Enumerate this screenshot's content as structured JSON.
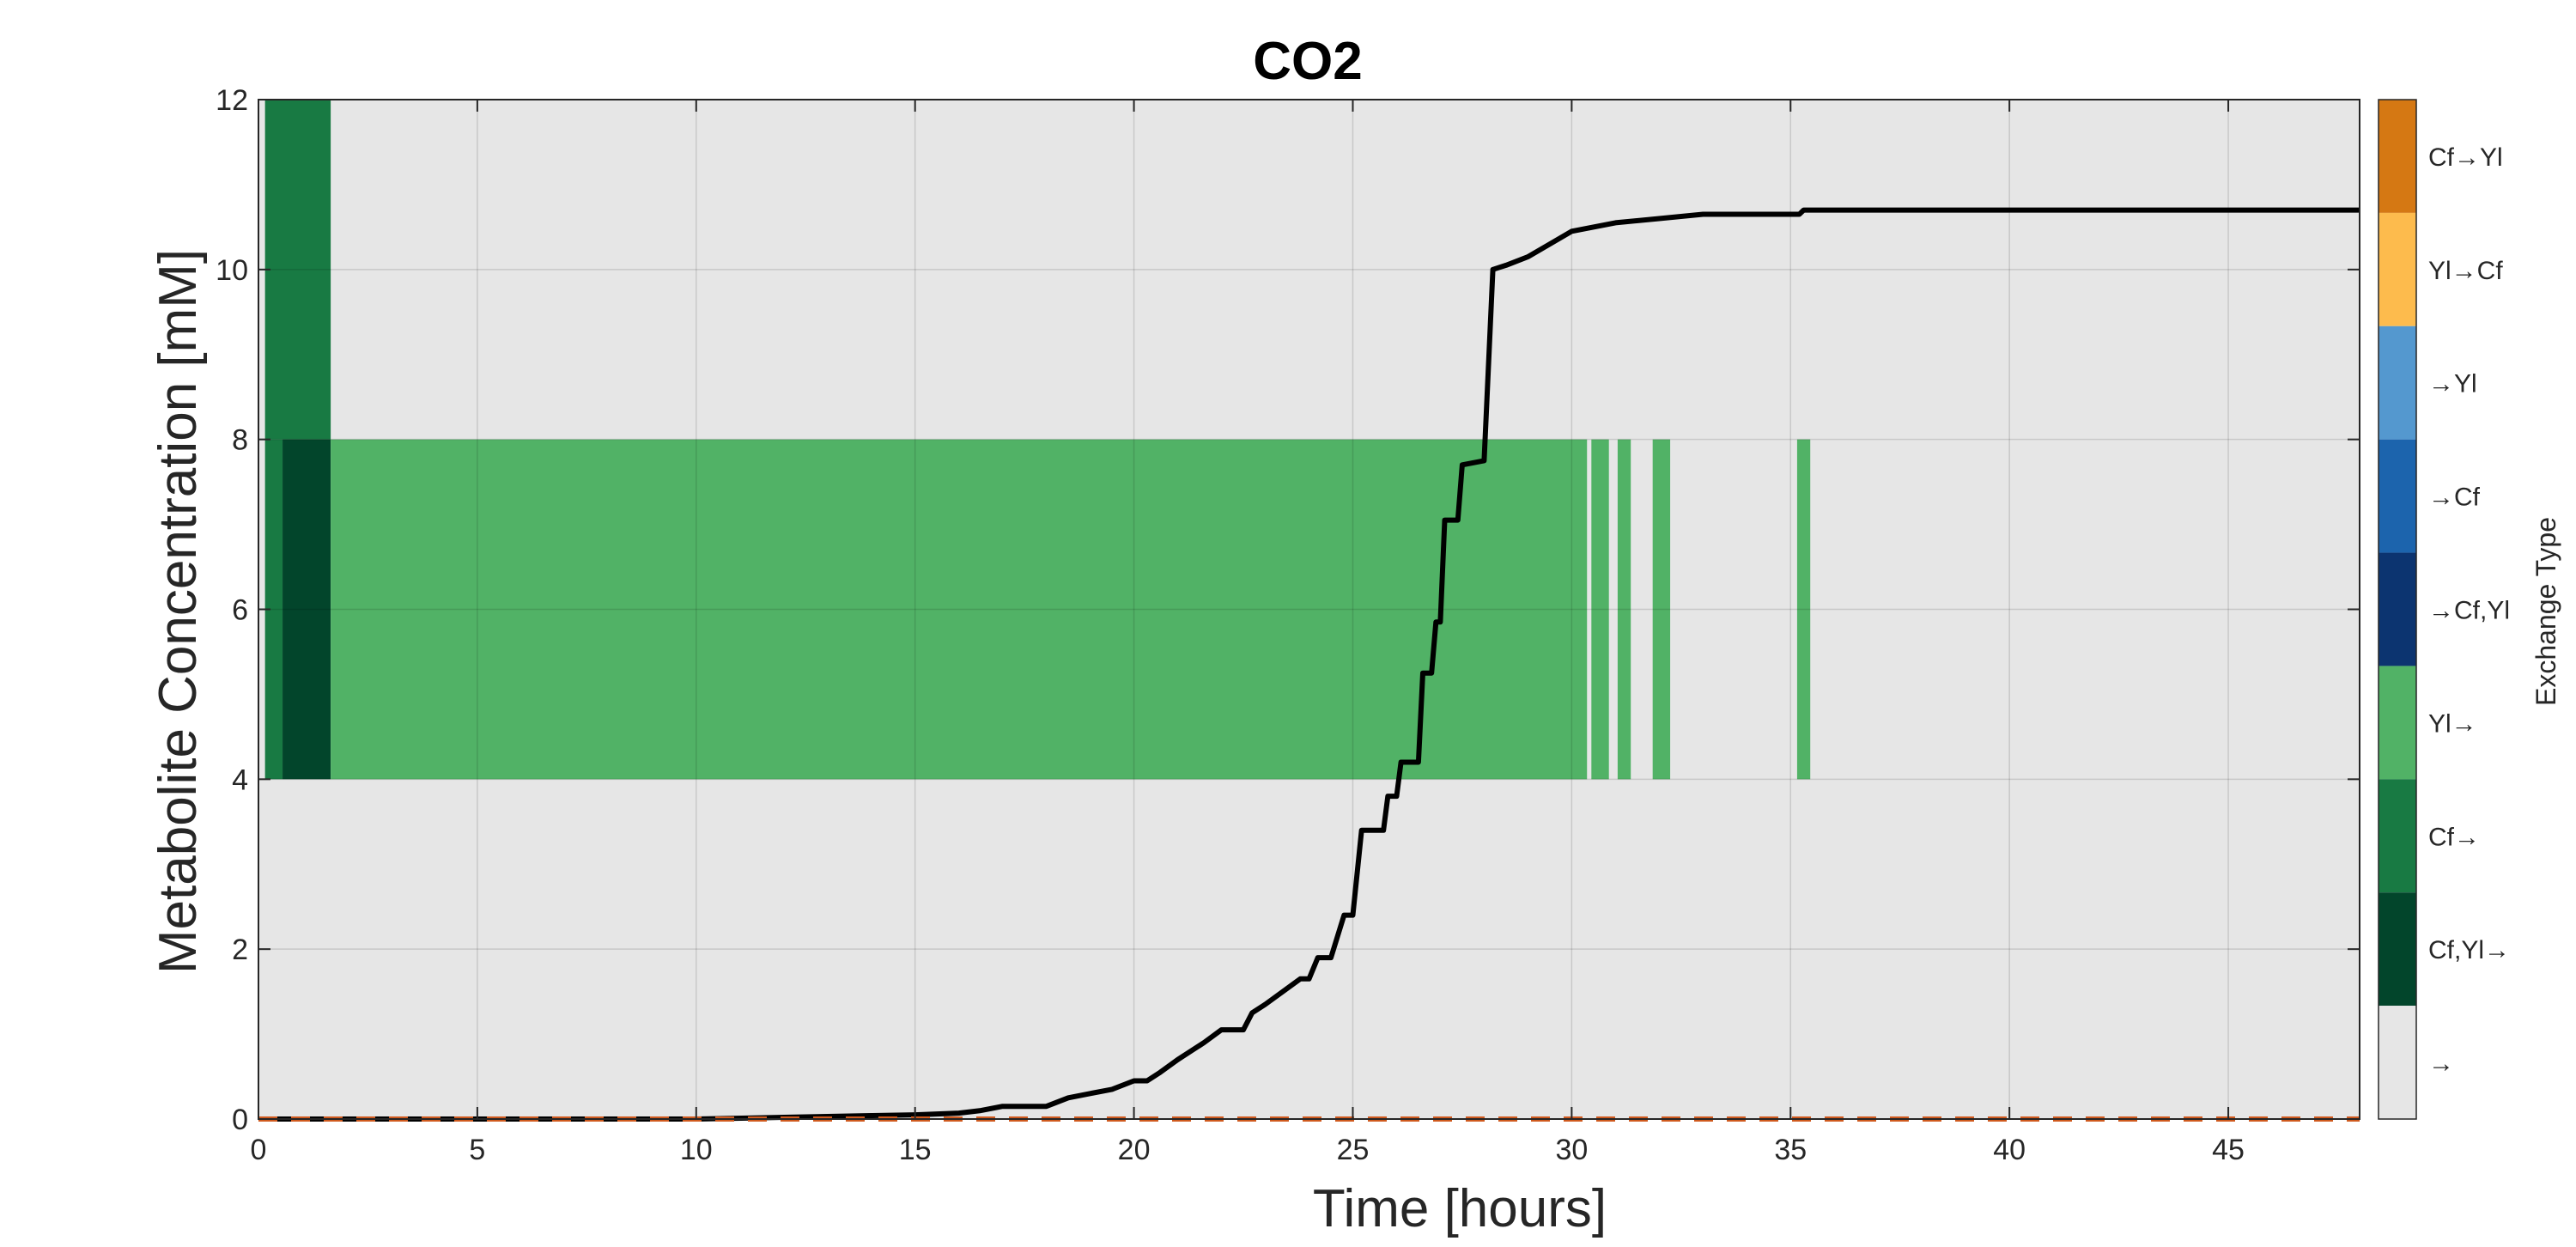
{
  "chart_data": {
    "type": "line",
    "title": "CO2",
    "xlabel": "Time [hours]",
    "ylabel": "Metabolite Concentration [mM]",
    "xlim": [
      0,
      48
    ],
    "ylim": [
      0,
      12
    ],
    "xticks": [
      0,
      5,
      10,
      15,
      20,
      25,
      30,
      35,
      40,
      45
    ],
    "yticks": [
      0,
      2,
      4,
      6,
      8,
      10,
      12
    ],
    "grid": true,
    "background_color": "#e6e6e6",
    "series": [
      {
        "style": "solid",
        "color": "#000000",
        "x": [
          0,
          10,
          12,
          14,
          15,
          16,
          16.5,
          17,
          18,
          18.5,
          19,
          19.5,
          20,
          20.3,
          20.6,
          21,
          21.3,
          21.6,
          22,
          22.5,
          22.7,
          23,
          23.8,
          24,
          24.2,
          24.5,
          24.8,
          25,
          25.2,
          25.7,
          25.8,
          26,
          26.1,
          26.5,
          26.6,
          26.8,
          26.9,
          27,
          27.1,
          27.4,
          27.5,
          28,
          28.2,
          28.5,
          29,
          29.5,
          30,
          31,
          32,
          33,
          34,
          35.2,
          35.3,
          38,
          40,
          45,
          48
        ],
        "y": [
          0,
          0,
          0.02,
          0.04,
          0.05,
          0.07,
          0.1,
          0.15,
          0.15,
          0.25,
          0.3,
          0.35,
          0.45,
          0.45,
          0.55,
          0.7,
          0.8,
          0.9,
          1.05,
          1.05,
          1.25,
          1.35,
          1.65,
          1.65,
          1.9,
          1.9,
          2.4,
          2.4,
          3.4,
          3.4,
          3.8,
          3.8,
          4.2,
          4.2,
          5.25,
          5.25,
          5.85,
          5.85,
          7.05,
          7.05,
          7.7,
          7.75,
          10.0,
          10.05,
          10.15,
          10.3,
          10.45,
          10.55,
          10.6,
          10.65,
          10.65,
          10.65,
          10.7,
          10.7,
          10.7,
          10.7,
          10.7
        ]
      },
      {
        "style": "dashed",
        "color": "#d05a1e",
        "x": [
          0,
          48
        ],
        "y": [
          0,
          0
        ]
      }
    ],
    "exchange_bands": [
      {
        "type": "Cf→",
        "x": [
          0.15,
          1.65
        ],
        "y": [
          8,
          12
        ]
      },
      {
        "type": "Cf→",
        "x": [
          0.15,
          0.55
        ],
        "y": [
          4,
          8
        ]
      },
      {
        "type": "Cf,Yl→",
        "x": [
          0.55,
          1.65
        ],
        "y": [
          4,
          8
        ]
      },
      {
        "type": "Yl→",
        "x": [
          1.65,
          30.35
        ],
        "y": [
          4,
          8
        ]
      },
      {
        "type": "Yl→",
        "x": [
          30.45,
          30.85
        ],
        "y": [
          4,
          8
        ]
      },
      {
        "type": "Yl→",
        "x": [
          31.05,
          31.35
        ],
        "y": [
          4,
          8
        ]
      },
      {
        "type": "Yl→",
        "x": [
          31.85,
          32.25
        ],
        "y": [
          4,
          8
        ]
      },
      {
        "type": "Yl→",
        "x": [
          35.15,
          35.45
        ],
        "y": [
          4,
          8
        ]
      }
    ],
    "colorbar": {
      "label": "Exchange Type",
      "entries": [
        {
          "label": "Cf→Yl",
          "color": "#d57813"
        },
        {
          "label": "Yl→Cf",
          "color": "#fdbb4d"
        },
        {
          "label": "→Yl",
          "color": "#5498cf"
        },
        {
          "label": "→Cf",
          "color": "#1c64ad"
        },
        {
          "label": "→Cf,Yl",
          "color": "#0c3470"
        },
        {
          "label": "Yl→",
          "color": "#51b266"
        },
        {
          "label": "Cf→",
          "color": "#187a43"
        },
        {
          "label": "Cf,Yl→",
          "color": "#02452b"
        },
        {
          "label": "→",
          "color": "#e6e6e6"
        }
      ]
    }
  }
}
